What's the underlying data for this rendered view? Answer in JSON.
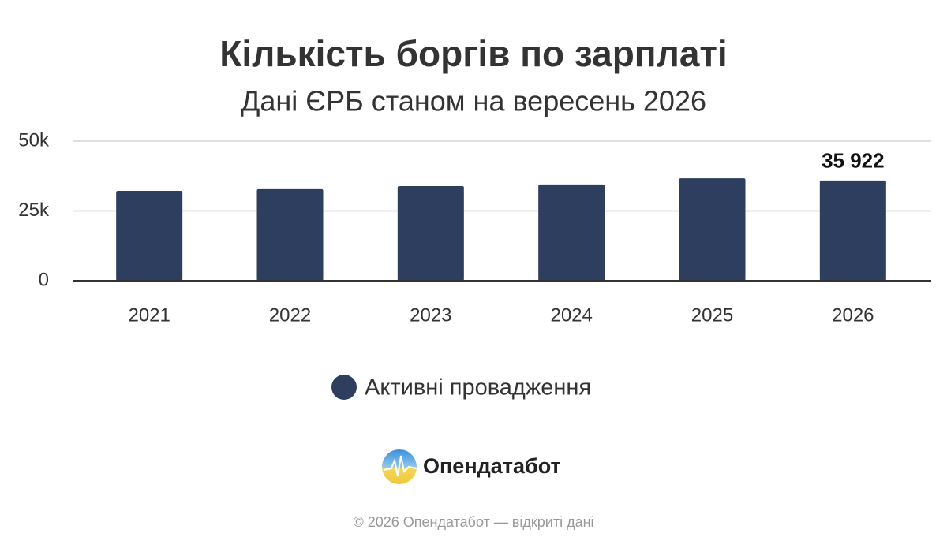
{
  "chart_data": {
    "type": "bar",
    "title": "Кількість боргів по зарплаті",
    "subtitle": "Дані ЄРБ станом на вересень 2026",
    "categories": [
      "2021",
      "2022",
      "2023",
      "2024",
      "2025",
      "2026"
    ],
    "series": [
      {
        "name": "Активні провадження",
        "color": "#2e3e5e",
        "values": [
          32200,
          32800,
          33900,
          34500,
          36700,
          35922
        ],
        "value_labels": [
          null,
          null,
          null,
          null,
          null,
          "35 922"
        ]
      }
    ],
    "ylim": [
      0,
      50000
    ],
    "yticks": [
      {
        "value": 0,
        "label": "0"
      },
      {
        "value": 25000,
        "label": "25k"
      },
      {
        "value": 50000,
        "label": "50k"
      }
    ],
    "grid": true,
    "legend": "bottom"
  },
  "branding": {
    "logo_text": "Опендатабот",
    "footer": "© 2026 Опендатабот — відкриті дані"
  }
}
